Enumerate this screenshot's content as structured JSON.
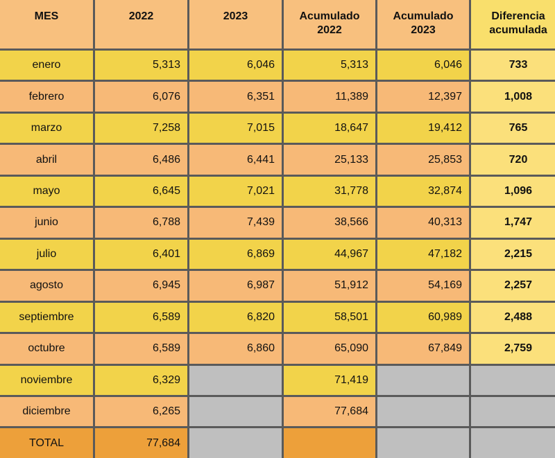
{
  "table": {
    "headers": [
      "MES",
      "2022",
      "2023",
      "Acumulado 2022",
      "Acumulado 2023",
      "Diferencia acumulada"
    ],
    "rows": [
      {
        "mes": "enero",
        "v2022": "5,313",
        "v2023": "6,046",
        "acum2022": "5,313",
        "acum2023": "6,046",
        "diff": "733"
      },
      {
        "mes": "febrero",
        "v2022": "6,076",
        "v2023": "6,351",
        "acum2022": "11,389",
        "acum2023": "12,397",
        "diff": "1,008"
      },
      {
        "mes": "marzo",
        "v2022": "7,258",
        "v2023": "7,015",
        "acum2022": "18,647",
        "acum2023": "19,412",
        "diff": "765"
      },
      {
        "mes": "abril",
        "v2022": "6,486",
        "v2023": "6,441",
        "acum2022": "25,133",
        "acum2023": "25,853",
        "diff": "720"
      },
      {
        "mes": "mayo",
        "v2022": "6,645",
        "v2023": "7,021",
        "acum2022": "31,778",
        "acum2023": "32,874",
        "diff": "1,096"
      },
      {
        "mes": "junio",
        "v2022": "6,788",
        "v2023": "7,439",
        "acum2022": "38,566",
        "acum2023": "40,313",
        "diff": "1,747"
      },
      {
        "mes": "julio",
        "v2022": "6,401",
        "v2023": "6,869",
        "acum2022": "44,967",
        "acum2023": "47,182",
        "diff": "2,215"
      },
      {
        "mes": "agosto",
        "v2022": "6,945",
        "v2023": "6,987",
        "acum2022": "51,912",
        "acum2023": "54,169",
        "diff": "2,257"
      },
      {
        "mes": "septiembre",
        "v2022": "6,589",
        "v2023": "6,820",
        "acum2022": "58,501",
        "acum2023": "60,989",
        "diff": "2,488"
      },
      {
        "mes": "octubre",
        "v2022": "6,589",
        "v2023": "6,860",
        "acum2022": "65,090",
        "acum2023": "67,849",
        "diff": "2,759"
      },
      {
        "mes": "noviembre",
        "v2022": "6,329",
        "v2023": "",
        "acum2022": "71,419",
        "acum2023": "",
        "diff": ""
      },
      {
        "mes": "diciembre",
        "v2022": "6,265",
        "v2023": "",
        "acum2022": "77,684",
        "acum2023": "",
        "diff": ""
      }
    ],
    "total": {
      "label": "TOTAL",
      "v2022": "77,684"
    }
  },
  "colors": {
    "header": "#f8c07e",
    "header_diff": "#f9df6c",
    "row_yellow": "#f2d34a",
    "row_orange": "#f7b977",
    "empty_gray": "#bfbfbf",
    "diff_cell": "#fbe07b",
    "total": "#eda03a"
  }
}
